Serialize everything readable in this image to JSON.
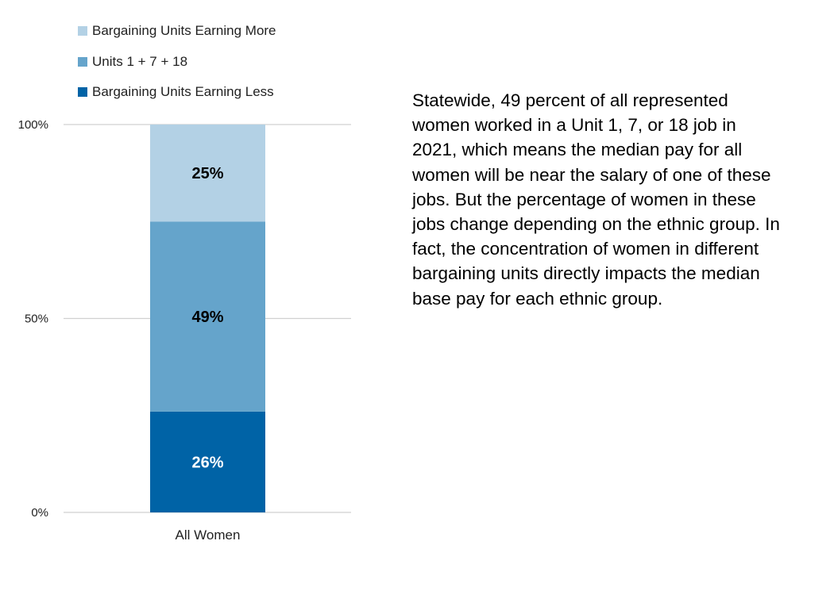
{
  "chart_data": {
    "type": "bar",
    "stacked": true,
    "categories": [
      "All Women"
    ],
    "series": [
      {
        "name": "Bargaining Units Earning Less",
        "values": [
          26
        ],
        "label": "26%",
        "color": "#0063A6",
        "label_color": "#ffffff"
      },
      {
        "name": "Units 1 + 7 + 18",
        "values": [
          49
        ],
        "label": "49%",
        "color": "#65A4CB",
        "label_color": "#000000"
      },
      {
        "name": "Bargaining Units Earning More",
        "values": [
          25
        ],
        "label": "25%",
        "color": "#B3D1E5",
        "label_color": "#000000"
      }
    ],
    "ylim": [
      0,
      100
    ],
    "yticks": [
      0,
      50,
      100
    ],
    "ytick_labels": [
      "0%",
      "50%",
      "100%"
    ],
    "grid": true,
    "legend": {
      "placement": "top-left",
      "items": [
        {
          "name": "Bargaining Units Earning More",
          "color": "#B3D1E5"
        },
        {
          "name": "Units 1 + 7 + 18",
          "color": "#65A4CB"
        },
        {
          "name": "Bargaining Units Earning Less",
          "color": "#0063A6"
        }
      ]
    }
  },
  "note": {
    "lines": [
      "Statewide, 49 percent of all represented",
      "women worked in a Unit 1, 7, or 18 job in",
      "2021, which means the median pay for all",
      "women will be near the salary of one of these",
      "jobs. But the percentage of women in these",
      "jobs change depending on the ethnic group. In",
      "fact, the concentration of women in different",
      "bargaining units directly impacts the median",
      "base pay for each ethnic group."
    ]
  }
}
